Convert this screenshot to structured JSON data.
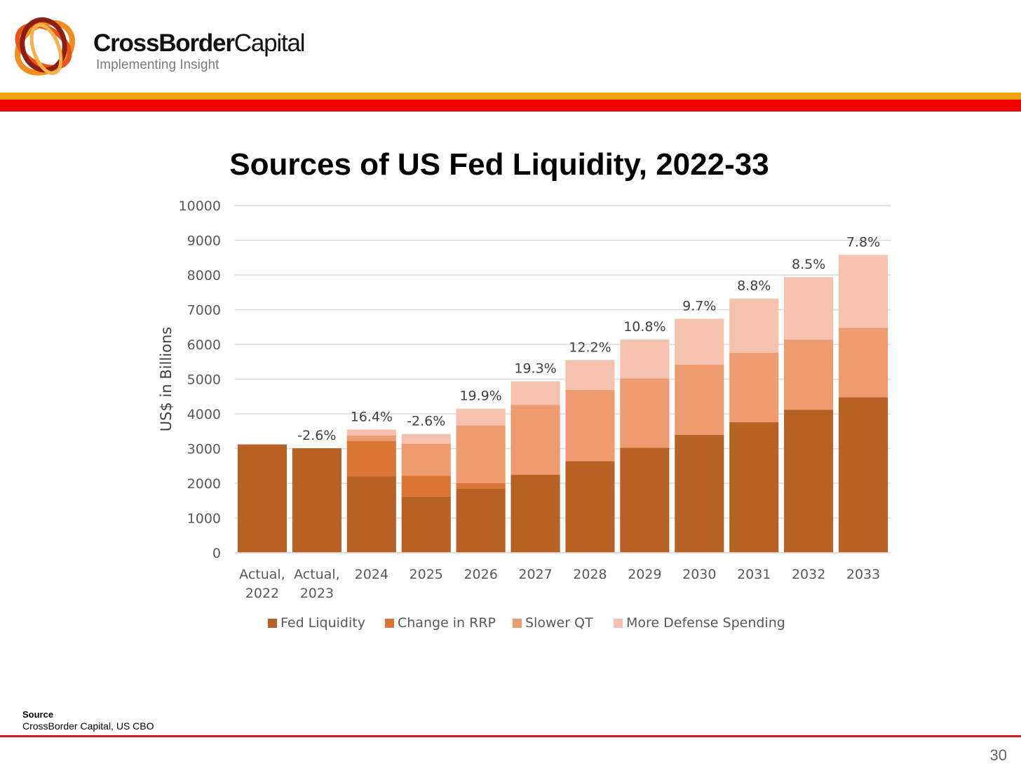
{
  "header": {
    "brand_bold": "CrossBorder",
    "brand_light": "Capital",
    "tagline": "Implementing Insight"
  },
  "colors": {
    "band_orange": "#f0a30a",
    "band_red": "#f00000",
    "footer_red": "#e0101a"
  },
  "source": {
    "label": "Source",
    "text": "CrossBorder Capital, US CBO"
  },
  "page_number": "30",
  "chart_data": {
    "type": "bar",
    "stacked": true,
    "title": "Sources of US Fed Liquidity, 2022-33",
    "ylabel": "US$ in Billions",
    "xlabel": "",
    "ylim": [
      0,
      10000
    ],
    "yticks": [
      "0",
      "1000",
      "2000",
      "3000",
      "4000",
      "5000",
      "6000",
      "7000",
      "8000",
      "9000",
      "10000"
    ],
    "grid": true,
    "legend_position": "bottom",
    "categories": [
      [
        "Actual,",
        "2022"
      ],
      [
        "Actual,",
        "2023"
      ],
      [
        "2024"
      ],
      [
        "2025"
      ],
      [
        "2026"
      ],
      [
        "2027"
      ],
      [
        "2028"
      ],
      [
        "2029"
      ],
      [
        "2030"
      ],
      [
        "2031"
      ],
      [
        "2032"
      ],
      [
        "2033"
      ]
    ],
    "series": [
      {
        "name": "Fed Liquidity",
        "color": "#b86124",
        "values": [
          3120,
          3010,
          2200,
          1620,
          1850,
          2250,
          2640,
          3020,
          3400,
          3760,
          4120,
          4480
        ]
      },
      {
        "name": "Change in RRP",
        "color": "#dc7433",
        "values": [
          0,
          0,
          1020,
          600,
          150,
          0,
          0,
          0,
          0,
          0,
          0,
          0
        ]
      },
      {
        "name": "Slower QT",
        "color": "#ee9b71",
        "values": [
          0,
          0,
          160,
          920,
          1670,
          2010,
          2050,
          2000,
          2020,
          2000,
          2020,
          2000
        ]
      },
      {
        "name": "More Defense Spending",
        "color": "#f5c2af",
        "values": [
          0,
          0,
          170,
          280,
          480,
          680,
          860,
          1120,
          1320,
          1560,
          1800,
          2100
        ]
      }
    ],
    "growth_labels": [
      "",
      "-2.6%",
      "16.4%",
      "-2.6%",
      "19.9%",
      "19.3%",
      "12.2%",
      "10.8%",
      "9.7%",
      "8.8%",
      "8.5%",
      "7.8%"
    ]
  }
}
